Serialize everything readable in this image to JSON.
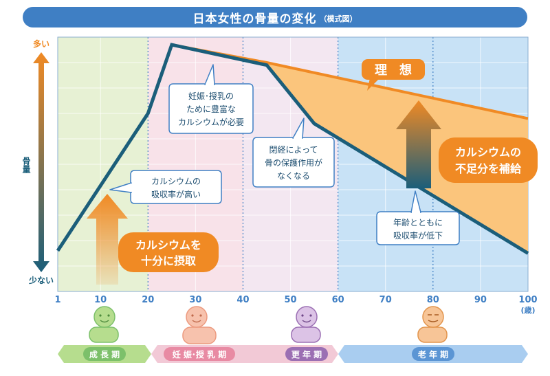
{
  "title": {
    "main": "日本女性の骨量の変化",
    "sub": "（模式図）"
  },
  "chart_data": {
    "type": "line",
    "title": "日本女性の骨量の変化（模式図）",
    "xlabel": "(歳)",
    "ylabel": "骨量",
    "y_top_label": "多い",
    "y_bottom_label": "少ない",
    "x_ticks": [
      1,
      10,
      20,
      30,
      40,
      50,
      60,
      70,
      80,
      90,
      100
    ],
    "xlim": [
      1,
      100
    ],
    "ylim": [
      0,
      100
    ],
    "grid": true,
    "series": [
      {
        "name": "理　想",
        "color": "#f08a24",
        "points": [
          [
            25,
            97
          ],
          [
            45,
            90
          ],
          [
            100,
            68
          ]
        ]
      },
      {
        "name": "",
        "color": "#1b5e7a",
        "points": [
          [
            1,
            16
          ],
          [
            20,
            70
          ],
          [
            25,
            97
          ],
          [
            45,
            89
          ],
          [
            55,
            66
          ],
          [
            100,
            15
          ]
        ]
      }
    ],
    "stage_bands": [
      {
        "from": 1,
        "to": 20,
        "color": "#e7f1d4"
      },
      {
        "from": 20,
        "to": 40,
        "color": "#f8e2e9"
      },
      {
        "from": 40,
        "to": 60,
        "color": "#f3e7f1"
      },
      {
        "from": 60,
        "to": 100,
        "color": "#c8e2f6"
      }
    ],
    "annotations": {
      "pregnancy": [
        "妊娠･授乳の",
        "ために豊富な",
        "カルシウムが必要"
      ],
      "menopause": [
        "閉経によって",
        "骨の保護作用が",
        "なくなる"
      ],
      "absorption_high": [
        "カルシウムの",
        "吸収率が高い"
      ],
      "absorption_low": [
        "年齢とともに",
        "吸収率が低下"
      ],
      "intake": [
        "カルシウムを",
        "十分に摂取"
      ],
      "supplement": [
        "カルシウムの",
        "不足分を補給"
      ]
    }
  },
  "stages": [
    {
      "label": "成 長 期",
      "color": "#7cc06a"
    },
    {
      "label": "妊 娠･授 乳 期",
      "color": "#e88aa3"
    },
    {
      "label": "更 年 期",
      "color": "#9b6fb3"
    },
    {
      "label": "老 年 期",
      "color": "#5b95d4"
    }
  ]
}
